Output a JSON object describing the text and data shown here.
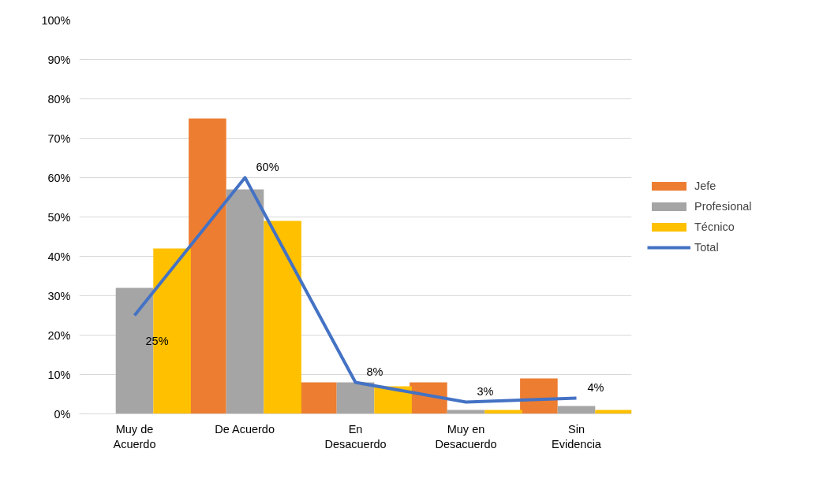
{
  "chart_data": {
    "type": "bar",
    "categories": [
      "Muy de Acuerdo",
      "De Acuerdo",
      "En Desacuerdo",
      "Muy en Desacuerdo",
      "Sin Evidencia"
    ],
    "series": [
      {
        "name": "Jefe",
        "color": "#ed7d31",
        "values": [
          0,
          75,
          8,
          8,
          9
        ]
      },
      {
        "name": "Profesional",
        "color": "#a5a5a5",
        "values": [
          32,
          57,
          8,
          1,
          2
        ]
      },
      {
        "name": "Técnico",
        "color": "#ffc000",
        "values": [
          42,
          49,
          7,
          1,
          1
        ]
      },
      {
        "name": "Total",
        "type": "line",
        "color": "#4472c4",
        "values": [
          25,
          60,
          8,
          3,
          4
        ],
        "value_labels": [
          "25%",
          "60%",
          "8%",
          "3%",
          "4%"
        ]
      }
    ],
    "ylim": [
      0,
      100
    ],
    "yticks": [
      {
        "value": 0,
        "label": "0%"
      },
      {
        "value": 10,
        "label": "10%"
      },
      {
        "value": 20,
        "label": "20%"
      },
      {
        "value": 30,
        "label": "30%"
      },
      {
        "value": 40,
        "label": "40%"
      },
      {
        "value": 50,
        "label": "50%"
      },
      {
        "value": 60,
        "label": "60%"
      },
      {
        "value": 70,
        "label": "70%"
      },
      {
        "value": 80,
        "label": "80%"
      },
      {
        "value": 90,
        "label": "90%"
      },
      {
        "value": 100,
        "label": "100%"
      }
    ],
    "grid": "y",
    "legend": "right",
    "marker": "none",
    "line_style": "solid"
  }
}
